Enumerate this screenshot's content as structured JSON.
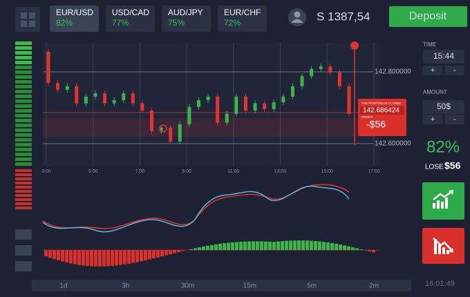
{
  "pairs": [
    {
      "name": "EUR/USD",
      "payout": "82%"
    },
    {
      "name": "USD/CAD",
      "payout": "77%"
    },
    {
      "name": "AUD/JPY",
      "payout": "75%"
    },
    {
      "name": "EUR/CHF",
      "payout": "72%"
    }
  ],
  "balance": "S 1387,54",
  "deposit": "Deposit",
  "time": {
    "label": "TIME",
    "value": "15:44",
    "plus": "+",
    "minus": "-"
  },
  "amount": {
    "label": "AMOUNT",
    "value": "50$",
    "plus": "+",
    "minus": "-"
  },
  "payout": "82%",
  "result": {
    "label": "LOSE",
    "value": "$56"
  },
  "chart": {
    "type": "candlestick",
    "ylim": [
      142.538,
      142.881
    ],
    "yticks": [
      {
        "value": 142.8,
        "label": "142.800000"
      },
      {
        "value": 142.6,
        "label": "142.600000"
      }
    ],
    "times": [
      "3:00",
      "5:00",
      "7:00",
      "9:00",
      "11:00",
      "13:00",
      "15:00",
      "17:00"
    ],
    "up_color": "#3bb44a",
    "down_color": "#e0352f",
    "candles": [
      [
        142.856,
        142.769
      ],
      [
        142.769,
        142.75
      ],
      [
        142.75,
        142.76
      ],
      [
        142.76,
        142.712
      ],
      [
        142.712,
        142.731
      ],
      [
        142.731,
        142.74
      ],
      [
        142.74,
        142.712
      ],
      [
        142.712,
        142.721
      ],
      [
        142.721,
        142.74
      ],
      [
        142.74,
        142.712
      ],
      [
        142.712,
        142.692
      ],
      [
        142.692,
        142.635
      ],
      [
        142.635,
        142.644
      ],
      [
        142.644,
        142.606
      ],
      [
        142.606,
        142.654
      ],
      [
        142.654,
        142.702
      ],
      [
        142.702,
        142.721
      ],
      [
        142.721,
        142.731
      ],
      [
        142.731,
        142.658
      ],
      [
        142.658,
        142.683
      ],
      [
        142.683,
        142.731
      ],
      [
        142.731,
        142.692
      ],
      [
        142.692,
        142.712
      ],
      [
        142.712,
        142.696
      ],
      [
        142.696,
        142.715
      ],
      [
        142.715,
        142.731
      ],
      [
        142.731,
        142.76
      ],
      [
        142.76,
        142.788
      ],
      [
        142.788,
        142.808
      ],
      [
        142.808,
        142.815
      ],
      [
        142.815,
        142.798
      ],
      [
        142.798,
        142.76
      ],
      [
        142.76,
        142.683
      ]
    ],
    "position": {
      "title": "THE POSITION IS CLOSED",
      "price": 142.686424,
      "profit_label": "PROFIT",
      "profit": "-$56"
    }
  },
  "timeframes": [
    "1d",
    "3h",
    "30m",
    "15m",
    "5m",
    "2m"
  ],
  "clock": "16:01:49"
}
